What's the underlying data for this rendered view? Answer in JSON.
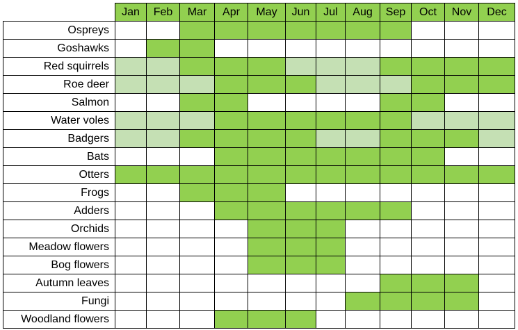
{
  "chart_data": {
    "type": "heatmap",
    "months": [
      "Jan",
      "Feb",
      "Mar",
      "Apr",
      "May",
      "Jun",
      "Jul",
      "Aug",
      "Sep",
      "Oct",
      "Nov",
      "Dec"
    ],
    "levels": {
      "0": "none",
      "1": "partial",
      "2": "full"
    },
    "colors": {
      "full": "#92D050",
      "partial": "#C5E0B4",
      "none": "#FFFFFF"
    },
    "rows": [
      {
        "label": "Ospreys",
        "values": [
          0,
          0,
          2,
          2,
          2,
          2,
          2,
          2,
          2,
          0,
          0,
          0
        ]
      },
      {
        "label": "Goshawks",
        "values": [
          0,
          2,
          2,
          0,
          0,
          0,
          0,
          0,
          0,
          0,
          0,
          0
        ]
      },
      {
        "label": "Red squirrels",
        "values": [
          1,
          1,
          2,
          2,
          2,
          1,
          1,
          1,
          2,
          2,
          2,
          2
        ]
      },
      {
        "label": "Roe deer",
        "values": [
          1,
          1,
          1,
          2,
          2,
          2,
          1,
          1,
          1,
          2,
          2,
          2
        ]
      },
      {
        "label": "Salmon",
        "values": [
          0,
          0,
          2,
          2,
          0,
          0,
          0,
          0,
          2,
          2,
          0,
          0
        ]
      },
      {
        "label": "Water voles",
        "values": [
          1,
          1,
          1,
          2,
          2,
          2,
          2,
          2,
          2,
          1,
          1,
          1
        ]
      },
      {
        "label": "Badgers",
        "values": [
          1,
          1,
          2,
          2,
          2,
          2,
          1,
          1,
          2,
          2,
          2,
          1
        ]
      },
      {
        "label": "Bats",
        "values": [
          0,
          0,
          0,
          2,
          2,
          2,
          2,
          2,
          2,
          2,
          0,
          0
        ]
      },
      {
        "label": "Otters",
        "values": [
          2,
          2,
          2,
          2,
          2,
          2,
          2,
          2,
          2,
          2,
          2,
          2
        ]
      },
      {
        "label": "Frogs",
        "values": [
          0,
          0,
          2,
          2,
          2,
          0,
          0,
          0,
          0,
          0,
          0,
          0
        ]
      },
      {
        "label": "Adders",
        "values": [
          0,
          0,
          0,
          2,
          2,
          2,
          2,
          2,
          2,
          0,
          0,
          0
        ]
      },
      {
        "label": "Orchids",
        "values": [
          0,
          0,
          0,
          0,
          2,
          2,
          2,
          0,
          0,
          0,
          0,
          0
        ]
      },
      {
        "label": "Meadow flowers",
        "values": [
          0,
          0,
          0,
          0,
          2,
          2,
          2,
          0,
          0,
          0,
          0,
          0
        ]
      },
      {
        "label": "Bog flowers",
        "values": [
          0,
          0,
          0,
          0,
          2,
          2,
          2,
          0,
          0,
          0,
          0,
          0
        ]
      },
      {
        "label": "Autumn leaves",
        "values": [
          0,
          0,
          0,
          0,
          0,
          0,
          0,
          0,
          2,
          2,
          2,
          0
        ]
      },
      {
        "label": "Fungi",
        "values": [
          0,
          0,
          0,
          0,
          0,
          0,
          0,
          2,
          2,
          2,
          2,
          0
        ]
      },
      {
        "label": "Woodland flowers",
        "values": [
          0,
          0,
          0,
          2,
          2,
          2,
          0,
          0,
          0,
          0,
          0,
          0
        ]
      }
    ]
  }
}
